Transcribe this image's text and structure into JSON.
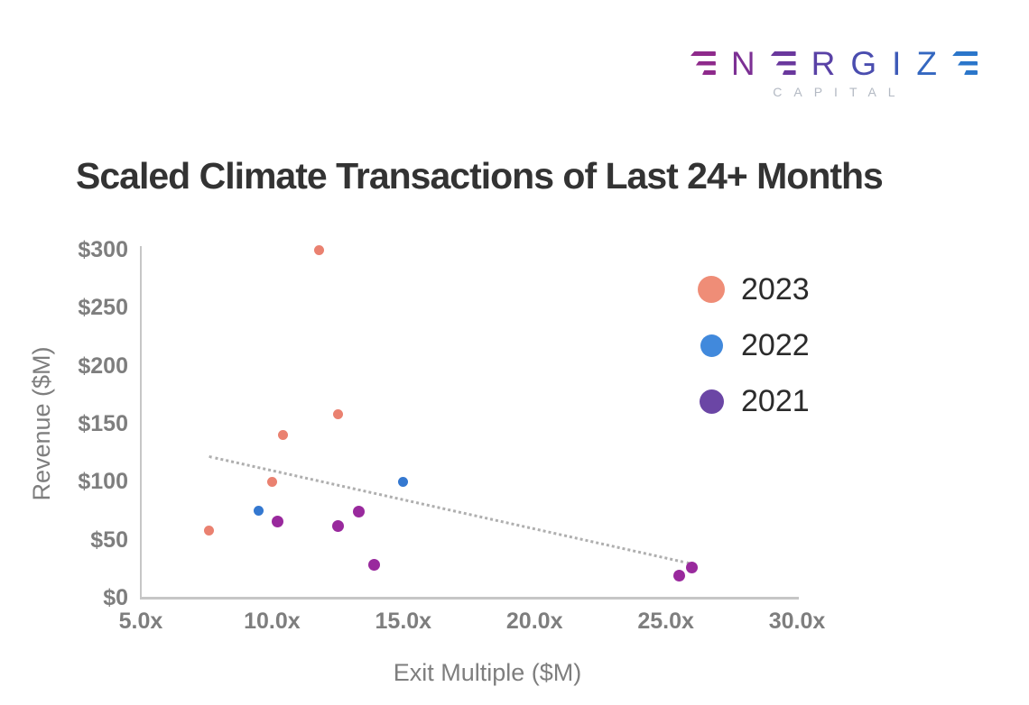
{
  "logo": {
    "brand": "ENERGIZE",
    "subtitle": "CAPITAL",
    "letter_colors": [
      "#8e2a8b",
      "#7c3094",
      "#6a389d",
      "#5941a6",
      "#4a4daf",
      "#3e5bb8",
      "#3467c0",
      "#2b76ca"
    ],
    "subtitle_color": "#b3b9c3"
  },
  "title": "Scaled Climate Transactions of Last 24+ Months",
  "chart_data": {
    "type": "scatter",
    "title": "Scaled Climate Transactions of Last 24+ Months",
    "xlabel": "Exit Multiple ($M)",
    "ylabel": "Revenue ($M)",
    "xlim": [
      5,
      30
    ],
    "ylim": [
      0,
      300
    ],
    "grid": false,
    "legend_position": "upper right",
    "x_tick_labels": [
      "5.0x",
      "10.0x",
      "15.0x",
      "20.0x",
      "25.0x",
      "30.0x"
    ],
    "x_tick_values": [
      5,
      10,
      15,
      20,
      25,
      30
    ],
    "y_tick_labels": [
      "$0",
      "$50",
      "$100",
      "$150",
      "$200",
      "$250",
      "$300"
    ],
    "y_tick_values": [
      0,
      50,
      100,
      150,
      200,
      250,
      300
    ],
    "series": [
      {
        "name": "2023",
        "color": "#ea8170",
        "legend_color": "#ef8d77",
        "points": [
          [
            11.8,
            300
          ],
          [
            12.5,
            158
          ],
          [
            10.4,
            140
          ],
          [
            10.0,
            100
          ],
          [
            7.6,
            58
          ]
        ]
      },
      {
        "name": "2022",
        "color": "#3478d0",
        "legend_color": "#4189dc",
        "points": [
          [
            15.0,
            100
          ],
          [
            9.5,
            75
          ]
        ]
      },
      {
        "name": "2021",
        "color": "#99299d",
        "legend_color": "#6b46a5",
        "points": [
          [
            10.2,
            66
          ],
          [
            12.5,
            62
          ],
          [
            13.3,
            74
          ],
          [
            13.9,
            28
          ],
          [
            25.5,
            19
          ],
          [
            26.0,
            26
          ]
        ]
      }
    ],
    "trendline": {
      "style": "dotted",
      "color": "#afafaf",
      "x1": 7.6,
      "y1": 123,
      "x2": 25.9,
      "y2": 31
    }
  }
}
